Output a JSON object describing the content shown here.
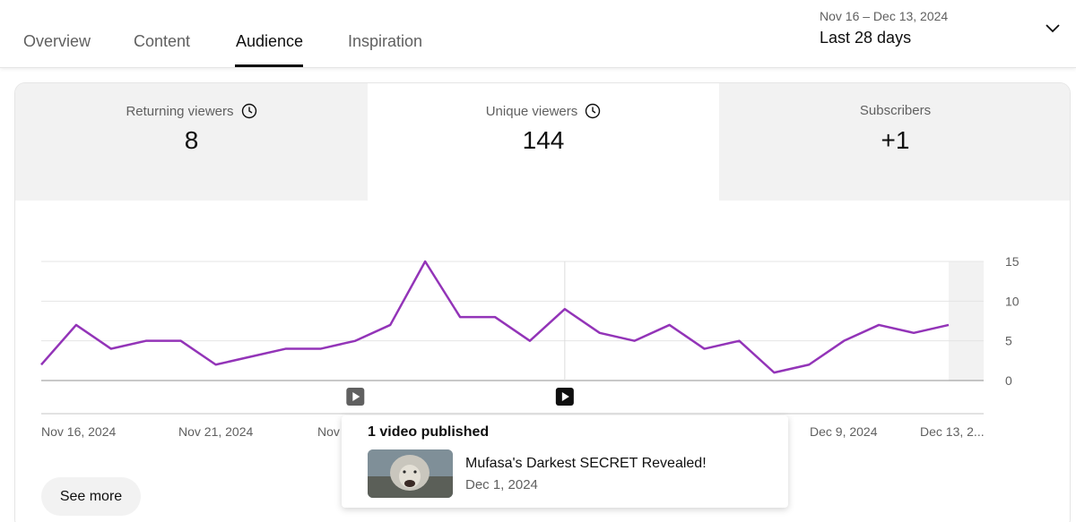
{
  "tabs": [
    {
      "label": "Overview",
      "active": false
    },
    {
      "label": "Content",
      "active": false
    },
    {
      "label": "Audience",
      "active": true
    },
    {
      "label": "Inspiration",
      "active": false
    }
  ],
  "date_picker": {
    "range": "Nov 16 – Dec 13, 2024",
    "period": "Last 28 days",
    "icon": "chevron-down-icon"
  },
  "metrics": [
    {
      "label": "Returning viewers",
      "value": "8",
      "has_info": true,
      "selected": false
    },
    {
      "label": "Unique viewers",
      "value": "144",
      "has_info": true,
      "selected": true
    },
    {
      "label": "Subscribers",
      "value": "+1",
      "has_info": false,
      "selected": false
    }
  ],
  "chart_data": {
    "type": "line",
    "series": [
      {
        "color": "#9334b8",
        "values": [
          2,
          7,
          4,
          5,
          5,
          2,
          3,
          4,
          4,
          5,
          7,
          15,
          8,
          8,
          5,
          9,
          6,
          5,
          7,
          4,
          5,
          1,
          2,
          5,
          7,
          6,
          7
        ]
      }
    ],
    "x_tick_labels": [
      "Nov 16, 2024",
      "Nov 21, 2024",
      "Nov",
      "Dec 9, 2024",
      "Dec 13, 2..."
    ],
    "y_ticks": [
      0,
      5,
      10,
      15
    ],
    "ylim": [
      0,
      15
    ],
    "grid": true,
    "highlighted_point_index": 15,
    "video_marker_indices": [
      9,
      15
    ],
    "final_period_shaded": true
  },
  "tooltip": {
    "heading": "1 video published",
    "video_title": "Mufasa's Darkest SECRET Revealed!",
    "video_date": "Dec 1, 2024"
  },
  "see_more_label": "See more"
}
